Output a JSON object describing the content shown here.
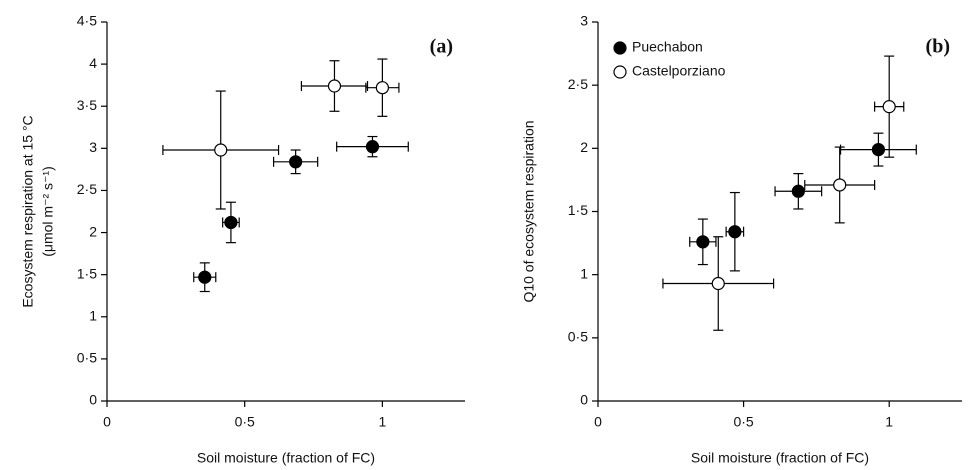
{
  "chart_data": [
    {
      "type": "scatter",
      "panel_label": "(a)",
      "xlabel": "Soil moisture (fraction of FC)",
      "ylabel": [
        "Ecosystem respiration at 15 °C",
        "(μmol m⁻² s⁻¹)"
      ],
      "xlim": [
        0,
        1.3
      ],
      "ylim": [
        0,
        4.5
      ],
      "xticks": [
        0,
        {
          "value": 0.5,
          "label": "0·5"
        },
        1
      ],
      "yticks": [
        0,
        {
          "value": 0.5,
          "label": "0·5"
        },
        1,
        {
          "value": 1.5,
          "label": "1·5"
        },
        2,
        {
          "value": 2.5,
          "label": "2·5"
        },
        3,
        {
          "value": 3.5,
          "label": "3·5"
        },
        4,
        {
          "value": 4.5,
          "label": "4·5"
        }
      ],
      "legend": false,
      "series": [
        {
          "name": "Puechabon",
          "color": "#000000",
          "fill": "#000000",
          "x": [
            0.355,
            0.45,
            0.685,
            0.964
          ],
          "values": [
            1.47,
            2.12,
            2.84,
            3.02
          ],
          "xerr": [
            0.04,
            0.03,
            0.08,
            0.13
          ],
          "yerr": [
            0.17,
            0.24,
            0.14,
            0.12
          ]
        },
        {
          "name": "Castelporziano",
          "color": "#000000",
          "fill": "#ffffff",
          "x": [
            0.413,
            0.826,
            1.0
          ],
          "values": [
            2.98,
            3.74,
            3.72
          ],
          "xerr": [
            0.21,
            0.12,
            0.06
          ],
          "yerr": [
            0.7,
            0.3,
            0.34
          ]
        }
      ]
    },
    {
      "type": "scatter",
      "panel_label": "(b)",
      "xlabel": "Soil moisture (fraction of FC)",
      "ylabel": [
        "Q10 of ecosystem respiration"
      ],
      "xlim": [
        0,
        1.25
      ],
      "ylim": [
        0,
        3
      ],
      "xticks": [
        0,
        {
          "value": 0.5,
          "label": "0·5"
        },
        1
      ],
      "yticks": [
        0,
        {
          "value": 0.5,
          "label": "0·5"
        },
        1,
        {
          "value": 1.5,
          "label": "1·5"
        },
        2,
        {
          "value": 2.5,
          "label": "2·5"
        },
        3
      ],
      "legend": "upper left",
      "series": [
        {
          "name": "Puechabon",
          "color": "#000000",
          "fill": "#000000",
          "x": [
            0.36,
            0.47,
            0.688,
            0.963
          ],
          "values": [
            1.26,
            1.34,
            1.66,
            1.99
          ],
          "xerr": [
            0.045,
            0.03,
            0.08,
            0.13
          ],
          "yerr": [
            0.18,
            0.31,
            0.14,
            0.13
          ]
        },
        {
          "name": "Castelporziano",
          "color": "#000000",
          "fill": "#ffffff",
          "x": [
            0.413,
            0.83,
            1.0
          ],
          "values": [
            0.93,
            1.71,
            2.33
          ],
          "xerr": [
            0.19,
            0.12,
            0.05
          ],
          "yerr": [
            0.37,
            0.3,
            0.4
          ]
        }
      ]
    }
  ]
}
